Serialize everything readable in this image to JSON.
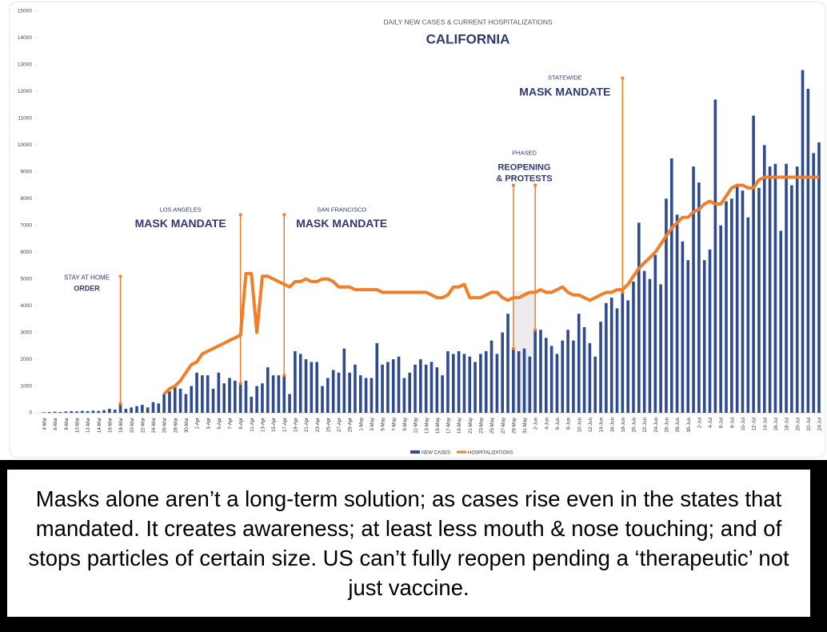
{
  "chart_data": {
    "type": "bar-line",
    "title": "DAILY NEW CASES & CURRENT HOSPITALIZATIONS",
    "subtitle": "CALIFORNIA",
    "categories": [
      "4-Mar",
      null,
      "6-Mar",
      null,
      "8-Mar",
      null,
      "10-Mar",
      null,
      "12-Mar",
      null,
      "14-Mar",
      null,
      "16-Mar",
      null,
      "18-Mar",
      null,
      "20-Mar",
      null,
      "22-Mar",
      null,
      "24-Mar",
      null,
      "26-Mar",
      null,
      "28-Mar",
      null,
      "30-Mar",
      null,
      "1-Apr",
      null,
      "3-Apr",
      null,
      "5-Apr",
      null,
      "7-Apr",
      null,
      "9-Apr",
      null,
      "11-Apr",
      null,
      "13-Apr",
      null,
      "15-Apr",
      null,
      "17-Apr",
      null,
      "19-Apr",
      null,
      "21-Apr",
      null,
      "23-Apr",
      null,
      "25-Apr",
      null,
      "27-Apr",
      null,
      "29-Apr",
      null,
      "1-May",
      null,
      "3-May",
      null,
      "5-May",
      null,
      "7-May",
      null,
      "9-May",
      null,
      "11-May",
      null,
      "13-May",
      null,
      "15-May",
      null,
      "17-May",
      null,
      "19-May",
      null,
      "21-May",
      null,
      "23-May",
      null,
      "25-May",
      null,
      "27-May",
      null,
      "29-May",
      null,
      "31-May",
      null,
      "2-Jun",
      null,
      "4-Jun",
      null,
      "6-Jun",
      null,
      "8-Jun",
      null,
      "10-Jun",
      null,
      "12-Jun",
      null,
      "14-Jun",
      null,
      "16-Jun",
      null,
      "18-Jun",
      null,
      "20-Jun",
      null,
      "22-Jun",
      null,
      "24-Jun",
      null,
      "26-Jun",
      null,
      "28-Jun",
      null,
      "30-Jun",
      null,
      "2-Jul",
      null,
      "4-Jul",
      null,
      "6-Jul",
      null,
      "8-Jul",
      null,
      "10-Jul",
      null,
      "12-Jul",
      null,
      "14-Jul",
      null,
      "16-Jul",
      null,
      "18-Jul",
      null,
      "20-Jul",
      null,
      "22-Jul",
      null,
      "24-Jul"
    ],
    "series": [
      {
        "name": "NEW CASES",
        "kind": "bar",
        "color": "#2f4a8f",
        "values": [
          20,
          30,
          40,
          30,
          50,
          60,
          50,
          70,
          60,
          80,
          70,
          100,
          150,
          120,
          350,
          150,
          200,
          250,
          300,
          200,
          400,
          350,
          700,
          800,
          1000,
          900,
          700,
          1000,
          1500,
          1400,
          1400,
          900,
          1500,
          1100,
          1300,
          1200,
          1100,
          1200,
          600,
          1000,
          1100,
          1700,
          1400,
          1400,
          1400,
          700,
          2300,
          2200,
          2000,
          1900,
          1900,
          1000,
          1300,
          1600,
          1500,
          2400,
          1500,
          1800,
          1400,
          1300,
          1300,
          2600,
          1800,
          1900,
          2000,
          2100,
          1300,
          1500,
          1800,
          2000,
          1800,
          1900,
          1700,
          1400,
          2300,
          2200,
          2300,
          2200,
          2100,
          1900,
          2200,
          2300,
          2700,
          2200,
          3000,
          3700,
          2400,
          2300,
          2400,
          2100,
          3100,
          3100,
          2800,
          2500,
          2200,
          2700,
          3100,
          2700,
          3700,
          3200,
          2600,
          2100,
          3400,
          4100,
          4300,
          3900,
          4500,
          4200,
          4900,
          7100,
          5300,
          5000,
          5900,
          4800,
          8000,
          9500,
          7400,
          6400,
          5700,
          9200,
          8600,
          5700,
          6100,
          11700,
          7000,
          7900,
          8000,
          8500,
          8300,
          7300,
          11100,
          8400,
          10000,
          9200,
          9300,
          6800,
          9300,
          8500,
          9200,
          12800,
          12100,
          9700,
          10100
        ]
      },
      {
        "name": "HOSPITALIZATIONS",
        "kind": "line",
        "color": "#f07f2c",
        "values": [
          null,
          null,
          null,
          null,
          null,
          null,
          null,
          null,
          null,
          null,
          null,
          null,
          null,
          null,
          null,
          null,
          null,
          null,
          null,
          null,
          null,
          null,
          700,
          900,
          1000,
          1200,
          1500,
          1800,
          1900,
          2200,
          2300,
          2400,
          2500,
          2600,
          2700,
          2800,
          2900,
          5200,
          5200,
          3000,
          5100,
          5100,
          5000,
          4900,
          4800,
          4700,
          4900,
          4900,
          5000,
          4900,
          4900,
          5000,
          5000,
          4900,
          4700,
          4700,
          4700,
          4600,
          4600,
          4600,
          4600,
          4600,
          4500,
          4500,
          4500,
          4500,
          4500,
          4500,
          4500,
          4500,
          4500,
          4400,
          4300,
          4300,
          4400,
          4700,
          4700,
          4800,
          4300,
          4300,
          4300,
          4400,
          4500,
          4500,
          4300,
          4200,
          4300,
          4300,
          4400,
          4500,
          4500,
          4600,
          4500,
          4500,
          4600,
          4700,
          4500,
          4400,
          4400,
          4300,
          4200,
          4300,
          4400,
          4500,
          4500,
          4600,
          4600,
          4800,
          5100,
          5400,
          5600,
          5800,
          6000,
          6300,
          6600,
          6900,
          7100,
          7300,
          7300,
          7500,
          7600,
          7800,
          7900,
          7800,
          7800,
          8100,
          8400,
          8500,
          8500,
          8400,
          8400,
          8700,
          8800,
          8800,
          8800,
          8800,
          8800,
          8800,
          8800,
          8800,
          8800,
          8800,
          8800
        ]
      }
    ],
    "ylim": [
      0,
      15000
    ],
    "yticks": [
      0,
      1000,
      2000,
      3000,
      4000,
      5000,
      6000,
      7000,
      8000,
      9000,
      10000,
      11000,
      12000,
      13000,
      14000,
      15000
    ],
    "legend": "bottom",
    "annotations": [
      {
        "small": [
          "STAY AT HOME"
        ],
        "big": [
          "ORDER"
        ],
        "x": "18-Mar",
        "y": 5100
      },
      {
        "small": [
          "LOS ANGELES"
        ],
        "big": [
          "MASK MANDATE"
        ],
        "x": "9-Apr",
        "y": 7400
      },
      {
        "small": [
          "SAN FRANCISCO"
        ],
        "big": [
          "MASK MANDATE"
        ],
        "x": "17-Apr",
        "y": 7400
      },
      {
        "small": [
          "PHASED"
        ],
        "big": [
          "REOPENING",
          "& PROTESTS"
        ],
        "x": "29-May",
        "x2": "2-Jun",
        "y": 8500
      },
      {
        "small": [
          "STATEWIDE"
        ],
        "big": [
          "MASK MANDATE"
        ],
        "x": "18-Jun",
        "y": 12500
      }
    ]
  },
  "caption": "Masks alone aren’t a long-term solution; as cases rise even in the states that mandated. It creates awareness; at least less mouth & nose touching; and of stops particles of certain size. US can’t fully reopen pending a ‘therapeutic’ not just vaccine."
}
